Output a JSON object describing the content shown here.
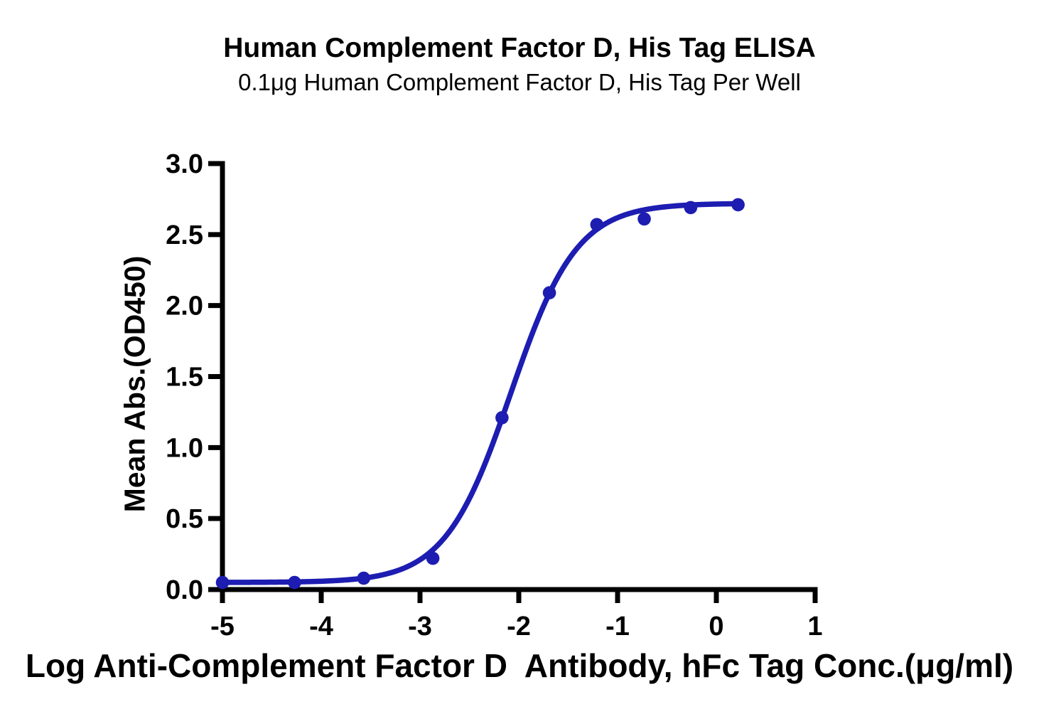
{
  "title": "Human Complement Factor D, His Tag ELISA",
  "subtitle": "0.1μg Human Complement Factor D, His Tag Per Well",
  "chart_data": {
    "type": "line",
    "title": "Human Complement Factor D, His Tag ELISA",
    "subtitle": "0.1μg Human Complement Factor D, His Tag Per Well",
    "xlabel": "Log Anti-Complement Factor D  Antibody, hFc Tag Conc.(μg/ml)",
    "ylabel": "Mean Abs.(OD450)",
    "xlim": [
      -5,
      1
    ],
    "ylim": [
      0,
      3
    ],
    "x_ticks": [
      -5,
      -4,
      -3,
      -2,
      -1,
      0,
      1
    ],
    "x_tick_labels": [
      "-5",
      "-4",
      "-3",
      "-2",
      "-1",
      "0",
      "1"
    ],
    "y_ticks": [
      0.0,
      0.5,
      1.0,
      1.5,
      2.0,
      2.5,
      3.0
    ],
    "y_tick_labels": [
      "0.0",
      "0.5",
      "1.0",
      "1.5",
      "2.0",
      "2.5",
      "3.0"
    ],
    "grid": false,
    "legend": null,
    "series": [
      {
        "name": "Anti-Complement Factor D Antibody, hFc Tag",
        "x": [
          -5.0,
          -4.27,
          -3.57,
          -2.87,
          -2.17,
          -1.69,
          -1.21,
          -0.73,
          -0.26,
          0.22
        ],
        "y": [
          0.05,
          0.05,
          0.08,
          0.22,
          1.21,
          2.09,
          2.57,
          2.61,
          2.69,
          2.71
        ]
      }
    ],
    "fit_curve": {
      "model": "4PL",
      "bottom": 0.05,
      "top": 2.72,
      "hill_slope": 1.3,
      "log_ec50": -2.08,
      "x_range": [
        -5.0,
        0.22
      ]
    },
    "line_color": "#1d1db2",
    "marker_color": "#1d1db2",
    "axis_color": "#000000",
    "marker_radius": 9.3,
    "line_width": 7.5,
    "axis_width": 7
  }
}
